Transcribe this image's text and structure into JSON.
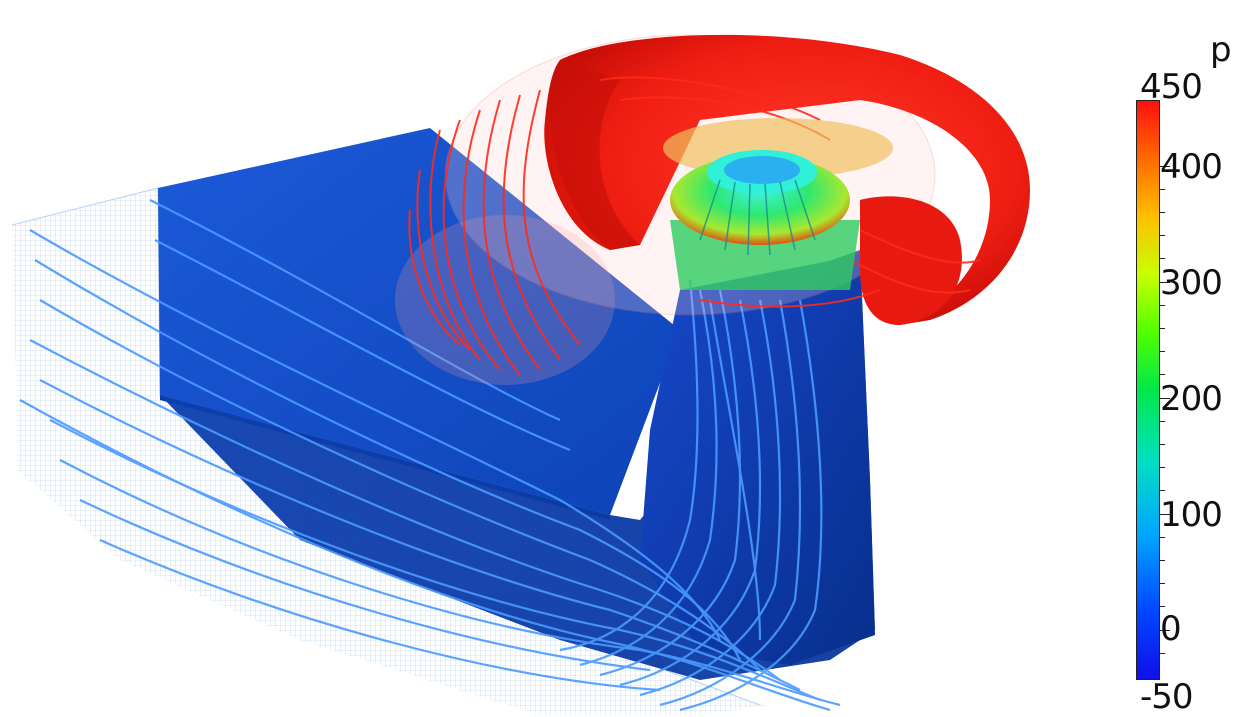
{
  "colorbar": {
    "title": "p",
    "min": -50,
    "max": 450,
    "ticks": [
      "450",
      "400",
      "300",
      "200",
      "100",
      "0",
      "-50"
    ],
    "colors": {
      "high": "#ff1010",
      "mid": "#00e84a",
      "low": "#1010e8"
    }
  },
  "scene": {
    "objects": [
      "spiral-casing",
      "runner",
      "draft-tube",
      "streamlines",
      "mesh-outline"
    ]
  }
}
